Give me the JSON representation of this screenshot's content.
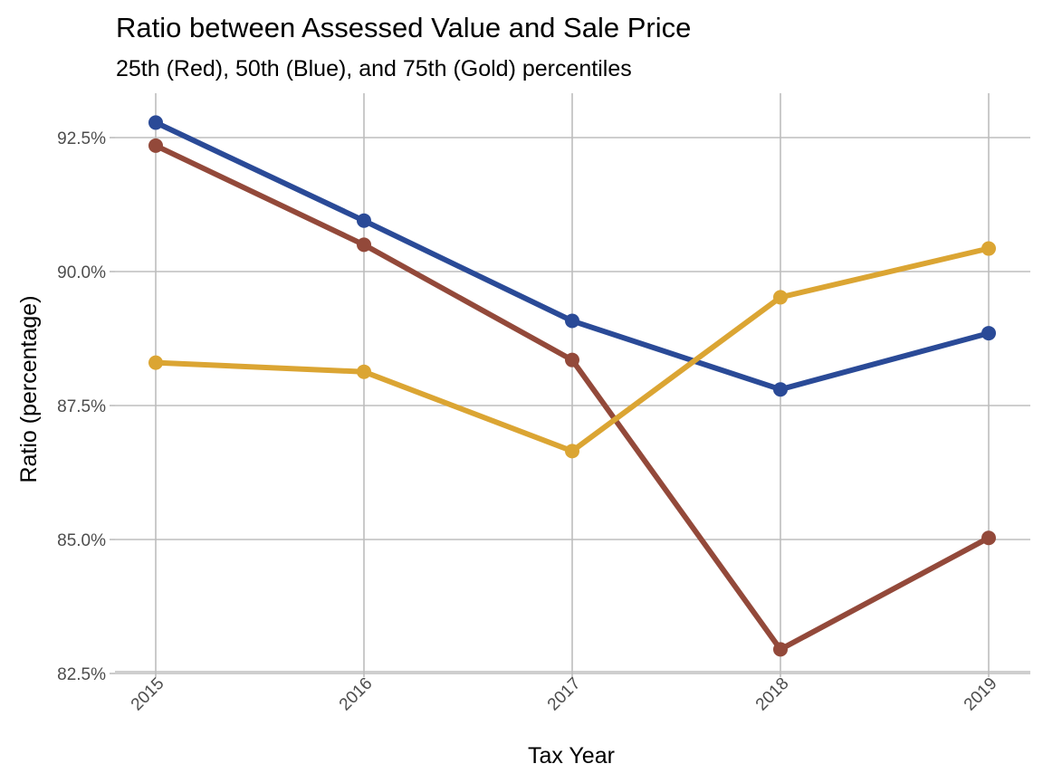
{
  "chart_data": {
    "type": "line",
    "title": "Ratio between Assessed Value and Sale Price",
    "subtitle": "25th (Red), 50th (Blue), and 75th (Gold) percentiles",
    "xlabel": "Tax Year",
    "ylabel": "Ratio (percentage)",
    "x": [
      2015,
      2016,
      2017,
      2018,
      2019
    ],
    "x_tick_labels": [
      "2015",
      "2016",
      "2017",
      "2018",
      "2019"
    ],
    "ylim": [
      82.5,
      93.2
    ],
    "y_ticks": [
      82.5,
      85.0,
      87.5,
      90.0,
      92.5
    ],
    "y_tick_labels": [
      "82.5%",
      "85.0%",
      "87.5%",
      "90.0%",
      "92.5%"
    ],
    "grid": true,
    "legend": "none",
    "series": [
      {
        "key": "p25",
        "color": "#93493a",
        "values": [
          92.35,
          90.5,
          88.35,
          82.95,
          85.03
        ]
      },
      {
        "key": "p50",
        "color": "#2a4a97",
        "values": [
          92.78,
          90.95,
          89.08,
          87.8,
          88.85
        ]
      },
      {
        "key": "p75",
        "color": "#dba533",
        "values": [
          88.3,
          88.13,
          86.65,
          89.52,
          90.43
        ]
      }
    ]
  }
}
